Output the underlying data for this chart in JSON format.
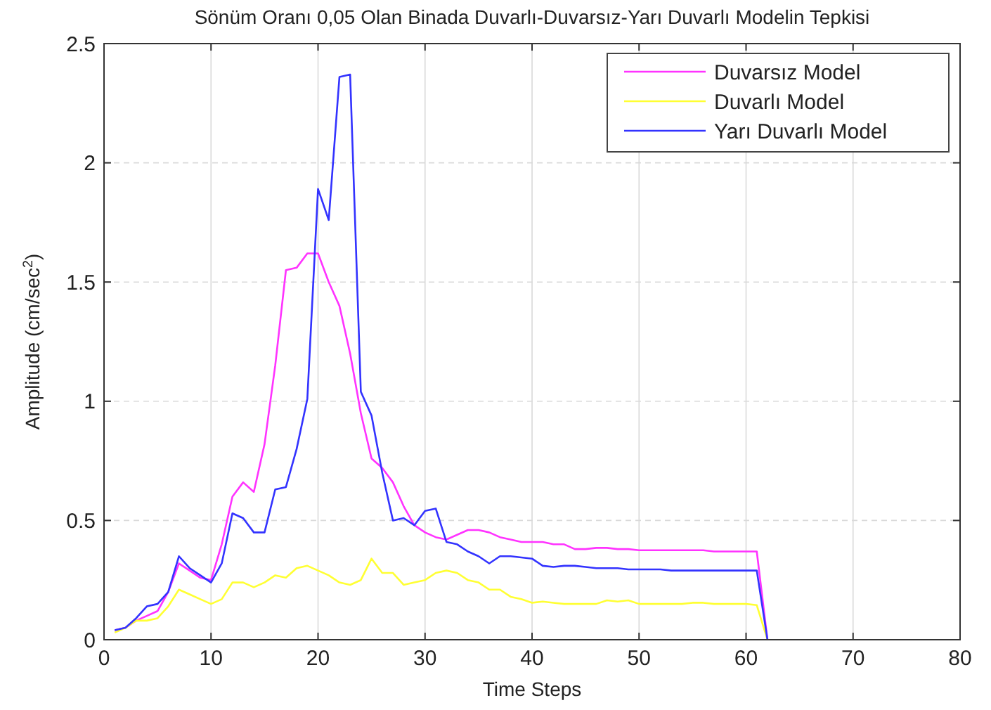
{
  "chart_data": {
    "type": "line",
    "title": "Sönüm Oranı 0,05 Olan Binada Duvarlı-Duvarsız-Yarı Duvarlı Modelin Tepkisi",
    "xlabel": "Time Steps",
    "ylabel": "Amplitude (cm/sec$^{2}$)",
    "x": [
      1,
      2,
      3,
      4,
      5,
      6,
      7,
      8,
      9,
      10,
      11,
      12,
      13,
      14,
      15,
      16,
      17,
      18,
      19,
      20,
      21,
      22,
      23,
      24,
      25,
      26,
      27,
      28,
      29,
      30,
      31,
      32,
      33,
      34,
      35,
      36,
      37,
      38,
      39,
      40,
      41,
      42,
      43,
      44,
      45,
      46,
      47,
      48,
      49,
      50,
      51,
      52,
      53,
      54,
      55,
      56,
      57,
      58,
      59,
      60,
      61,
      62
    ],
    "series": [
      {
        "name": "Duvarsız Model",
        "color": "#ff33ff",
        "values": [
          0.04,
          0.05,
          0.08,
          0.1,
          0.12,
          0.2,
          0.32,
          0.29,
          0.26,
          0.25,
          0.4,
          0.6,
          0.66,
          0.62,
          0.82,
          1.15,
          1.55,
          1.56,
          1.62,
          1.62,
          1.5,
          1.4,
          1.2,
          0.95,
          0.76,
          0.72,
          0.66,
          0.56,
          0.48,
          0.45,
          0.43,
          0.42,
          0.44,
          0.46,
          0.46,
          0.45,
          0.43,
          0.42,
          0.41,
          0.41,
          0.41,
          0.4,
          0.4,
          0.38,
          0.38,
          0.385,
          0.385,
          0.38,
          0.38,
          0.375,
          0.375,
          0.375,
          0.375,
          0.375,
          0.375,
          0.375,
          0.37,
          0.37,
          0.37,
          0.37,
          0.37,
          0
        ]
      },
      {
        "name": "Duvarlı Model",
        "color": "#ffff33",
        "values": [
          0.03,
          0.05,
          0.08,
          0.08,
          0.09,
          0.14,
          0.21,
          0.19,
          0.17,
          0.15,
          0.17,
          0.24,
          0.24,
          0.22,
          0.24,
          0.27,
          0.26,
          0.3,
          0.31,
          0.29,
          0.27,
          0.24,
          0.23,
          0.25,
          0.34,
          0.28,
          0.28,
          0.23,
          0.24,
          0.25,
          0.28,
          0.29,
          0.28,
          0.25,
          0.24,
          0.21,
          0.21,
          0.18,
          0.17,
          0.155,
          0.16,
          0.155,
          0.15,
          0.15,
          0.15,
          0.15,
          0.165,
          0.16,
          0.165,
          0.15,
          0.15,
          0.15,
          0.15,
          0.15,
          0.155,
          0.155,
          0.15,
          0.15,
          0.15,
          0.15,
          0.145,
          0
        ]
      },
      {
        "name": "Yarı Duvarlı Model",
        "color": "#3333ff",
        "values": [
          0.04,
          0.05,
          0.09,
          0.14,
          0.15,
          0.2,
          0.35,
          0.3,
          0.27,
          0.24,
          0.32,
          0.53,
          0.51,
          0.45,
          0.45,
          0.63,
          0.64,
          0.8,
          1.01,
          1.89,
          1.76,
          2.36,
          2.37,
          1.04,
          0.94,
          0.7,
          0.5,
          0.51,
          0.48,
          0.54,
          0.55,
          0.41,
          0.4,
          0.37,
          0.35,
          0.32,
          0.35,
          0.35,
          0.345,
          0.34,
          0.31,
          0.305,
          0.31,
          0.31,
          0.305,
          0.3,
          0.3,
          0.3,
          0.295,
          0.295,
          0.295,
          0.295,
          0.29,
          0.29,
          0.29,
          0.29,
          0.29,
          0.29,
          0.29,
          0.29,
          0.29,
          0
        ]
      }
    ],
    "xlim": [
      0,
      80
    ],
    "xticks": [
      0,
      10,
      20,
      30,
      40,
      50,
      60,
      70,
      80
    ],
    "ylim": [
      0,
      2.5
    ],
    "yticks": [
      0,
      0.5,
      1,
      1.5,
      2,
      2.5
    ],
    "grid": true,
    "legend": "top right",
    "marker": "none",
    "line_style": "solid"
  }
}
